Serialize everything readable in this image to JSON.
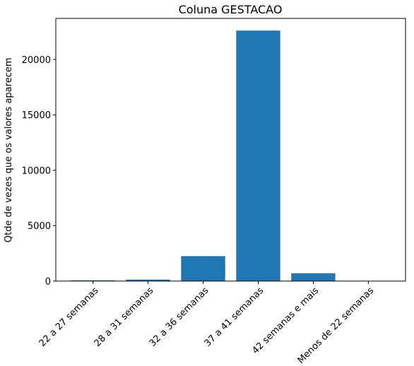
{
  "chart_data": {
    "type": "bar",
    "title": "Coluna GESTACAO",
    "xlabel": "",
    "ylabel": "Qtde de vezes que os valores aparecem",
    "categories": [
      "22 a 27 semanas",
      "28 a 31 semanas",
      "32 a 36 semanas",
      "37 a 41 semanas",
      "42 semanas e mais",
      "Menos de 22 semanas"
    ],
    "values": [
      60,
      130,
      2250,
      22600,
      700,
      15
    ],
    "yticks": [
      0,
      5000,
      10000,
      15000,
      20000
    ],
    "ylim": [
      0,
      23700
    ],
    "bar_color": "#1f77b4",
    "grid": false,
    "legend": "none"
  }
}
